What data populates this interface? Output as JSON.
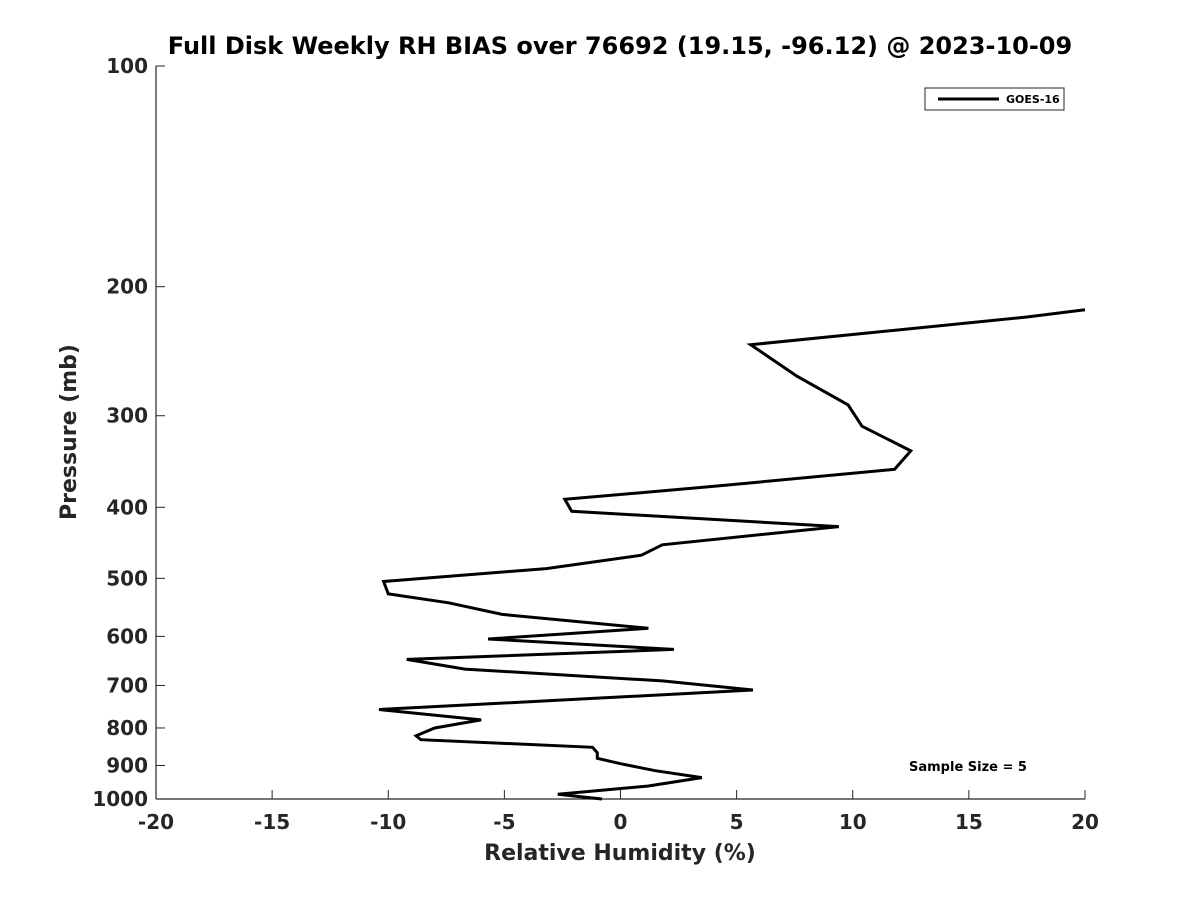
{
  "chart_data": {
    "type": "line",
    "title": "Full Disk Weekly RH BIAS over 76692 (19.15, -96.12) @ 2023-10-09",
    "xlabel": "Relative Humidity (%)",
    "ylabel": "Pressure (mb)",
    "xlim": [
      -20,
      20
    ],
    "ylim": [
      100,
      1000
    ],
    "y_scale": "log",
    "y_reversed": true,
    "x_ticks": [
      -20,
      -15,
      -10,
      -5,
      0,
      5,
      10,
      15,
      20
    ],
    "x_tick_labels": [
      "-20",
      "-15",
      "-10",
      "-5",
      "0",
      "5",
      "10",
      "15",
      "20"
    ],
    "y_ticks": [
      100,
      200,
      300,
      400,
      500,
      600,
      700,
      800,
      900,
      1000
    ],
    "y_tick_labels": [
      "100",
      "200",
      "300",
      "400",
      "500",
      "600",
      "700",
      "800",
      "900",
      "1000"
    ],
    "grid": false,
    "legend_position": "top-right",
    "annotation": "Sample Size = 5",
    "series": [
      {
        "name": "GOES-16",
        "color": "#000000",
        "points": [
          [
            -0.8,
            1000
          ],
          [
            -2.7,
            985
          ],
          [
            1.2,
            960
          ],
          [
            3.5,
            935
          ],
          [
            1.5,
            915
          ],
          [
            0.0,
            895
          ],
          [
            -1.0,
            880
          ],
          [
            -1.0,
            865
          ],
          [
            -1.2,
            850
          ],
          [
            -8.6,
            830
          ],
          [
            -8.8,
            820
          ],
          [
            -8.0,
            800
          ],
          [
            -6.0,
            780
          ],
          [
            -10.4,
            755
          ],
          [
            -1.5,
            730
          ],
          [
            5.7,
            710
          ],
          [
            1.8,
            690
          ],
          [
            -6.7,
            665
          ],
          [
            -9.2,
            645
          ],
          [
            2.3,
            625
          ],
          [
            -5.7,
            605
          ],
          [
            1.2,
            585
          ],
          [
            -5.1,
            560
          ],
          [
            -7.4,
            540
          ],
          [
            -10.0,
            525
          ],
          [
            -10.2,
            505
          ],
          [
            -3.2,
            485
          ],
          [
            0.9,
            465
          ],
          [
            1.8,
            450
          ],
          [
            9.4,
            425
          ],
          [
            -2.1,
            405
          ],
          [
            -2.4,
            390
          ],
          [
            3.8,
            375
          ],
          [
            11.8,
            355
          ],
          [
            12.5,
            335
          ],
          [
            10.4,
            310
          ],
          [
            9.8,
            290
          ],
          [
            7.6,
            265
          ],
          [
            5.6,
            240
          ],
          [
            17.5,
            220
          ],
          [
            20.0,
            215
          ]
        ]
      }
    ]
  }
}
